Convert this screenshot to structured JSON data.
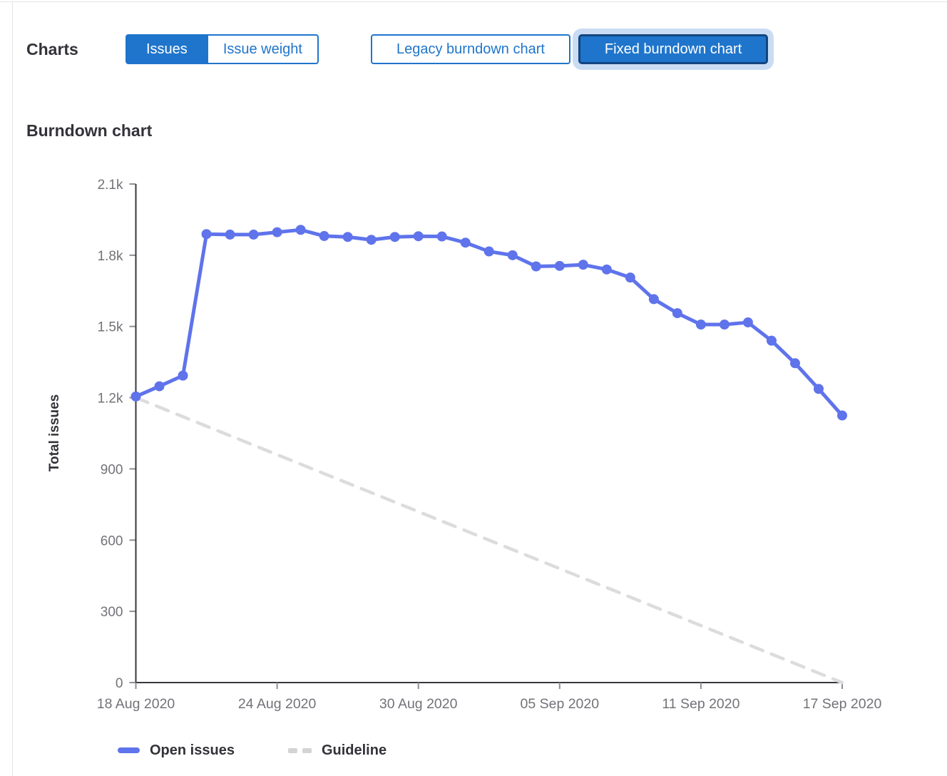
{
  "colors": {
    "accent_blue": "#1f75cb",
    "selected_border_navy": "#12457f",
    "focus_ring_light_blue": "#cadcf4",
    "line_blue": "#5f73eb",
    "guideline_gray": "#dcdcde",
    "axis_dark": "#37363d",
    "tick_gray": "#8f8f93",
    "tick_label_gray": "#737278",
    "heading_dark": "#333238",
    "border_light": "#e4e4e7"
  },
  "header": {
    "charts_label": "Charts",
    "metric_toggle": {
      "options": [
        {
          "label": "Issues",
          "selected": true
        },
        {
          "label": "Issue weight",
          "selected": false
        }
      ]
    },
    "chart_type_toggle": {
      "options": [
        {
          "label": "Legacy burndown chart",
          "selected": false
        },
        {
          "label": "Fixed burndown chart",
          "selected": true,
          "focused": true
        }
      ]
    }
  },
  "section_title": "Burndown chart",
  "chart_data": {
    "type": "line",
    "title": "Burndown chart",
    "xlabel": "",
    "ylabel": "Total issues",
    "ylim": [
      0,
      2100
    ],
    "y_ticks": [
      0,
      300,
      600,
      900,
      1200,
      1500,
      1800,
      2100
    ],
    "y_tick_labels": [
      "0",
      "300",
      "600",
      "900",
      "1.2k",
      "1.5k",
      "1.8k",
      "2.1k"
    ],
    "x_tick_labels": [
      "18 Aug 2020",
      "24 Aug 2020",
      "30 Aug 2020",
      "05 Sep 2020",
      "11 Sep 2020",
      "17 Sep 2020"
    ],
    "x_tick_indices": [
      0,
      6,
      12,
      18,
      24,
      30
    ],
    "x_unit": "day",
    "x_range": "18 Aug 2020 – 17 Sep 2020",
    "grid": false,
    "legend_position": "bottom",
    "series": [
      {
        "name": "Open issues",
        "style": "solid-with-markers",
        "color": "#5f73eb",
        "values": [
          1205,
          1248,
          1293,
          1889,
          1887,
          1887,
          1897,
          1907,
          1881,
          1877,
          1865,
          1877,
          1880,
          1879,
          1853,
          1816,
          1800,
          1753,
          1755,
          1760,
          1740,
          1706,
          1615,
          1556,
          1508,
          1508,
          1517,
          1440,
          1345,
          1237,
          1125
        ]
      },
      {
        "name": "Guideline",
        "style": "dashed",
        "color": "#dcdcde",
        "x": [
          0,
          30
        ],
        "values": [
          1200,
          0
        ]
      }
    ],
    "legend": [
      {
        "label": "Open issues"
      },
      {
        "label": "Guideline"
      }
    ]
  }
}
